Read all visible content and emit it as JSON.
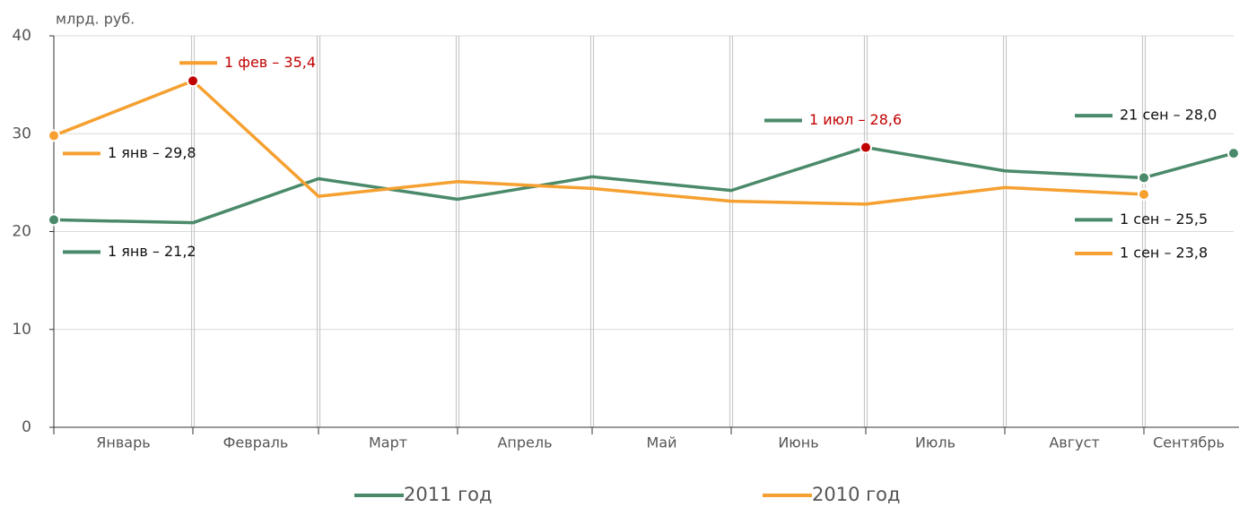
{
  "chart_data": {
    "type": "line",
    "y_unit": "млрд. руб.",
    "categories": [
      "Январь",
      "Февраль",
      "Март",
      "Апрель",
      "Май",
      "Июнь",
      "Июль",
      "Август",
      "Сентябрь"
    ],
    "x": [
      "01-01",
      "02-01",
      "03-01",
      "04-01",
      "05-01",
      "06-01",
      "07-01",
      "08-01",
      "09-01",
      "09-21"
    ],
    "xlim": [
      "01-01",
      "09-21"
    ],
    "xticks": [
      "01-01",
      "02-01",
      "03-01",
      "04-01",
      "05-01",
      "06-01",
      "07-01",
      "08-01",
      "09-01"
    ],
    "series": [
      {
        "name": "2011 год",
        "color": "#4a8a6a",
        "values": [
          21.2,
          20.9,
          25.4,
          23.3,
          25.6,
          24.2,
          28.6,
          26.2,
          25.5,
          28.0
        ]
      },
      {
        "name": "2010 год",
        "color": "#f5a030",
        "values": [
          29.8,
          35.4,
          23.6,
          25.1,
          24.4,
          23.1,
          22.8,
          24.5,
          23.8,
          null
        ]
      }
    ],
    "ylim": [
      0,
      40
    ],
    "yticks": [
      0,
      10,
      20,
      30,
      40
    ],
    "grid": true,
    "highlight_color": "#c00000",
    "annotations": [
      {
        "series": 1,
        "index": 0,
        "text": "1 янв – 29,8",
        "highlight": false
      },
      {
        "series": 1,
        "index": 1,
        "text": "1 фев – 35,4",
        "highlight": true
      },
      {
        "series": 0,
        "index": 0,
        "text": "1 янв – 21,2",
        "highlight": false
      },
      {
        "series": 0,
        "index": 6,
        "text": "1 июл – 28,6",
        "highlight": true
      },
      {
        "series": 0,
        "index": 9,
        "text": "21 сен – 28,0",
        "highlight": false
      },
      {
        "series": 0,
        "index": 8,
        "text": "1 сен – 25,5",
        "highlight": false
      },
      {
        "series": 1,
        "index": 8,
        "text": "1 сен – 23,8",
        "highlight": false
      }
    ],
    "legend": "bottom"
  }
}
